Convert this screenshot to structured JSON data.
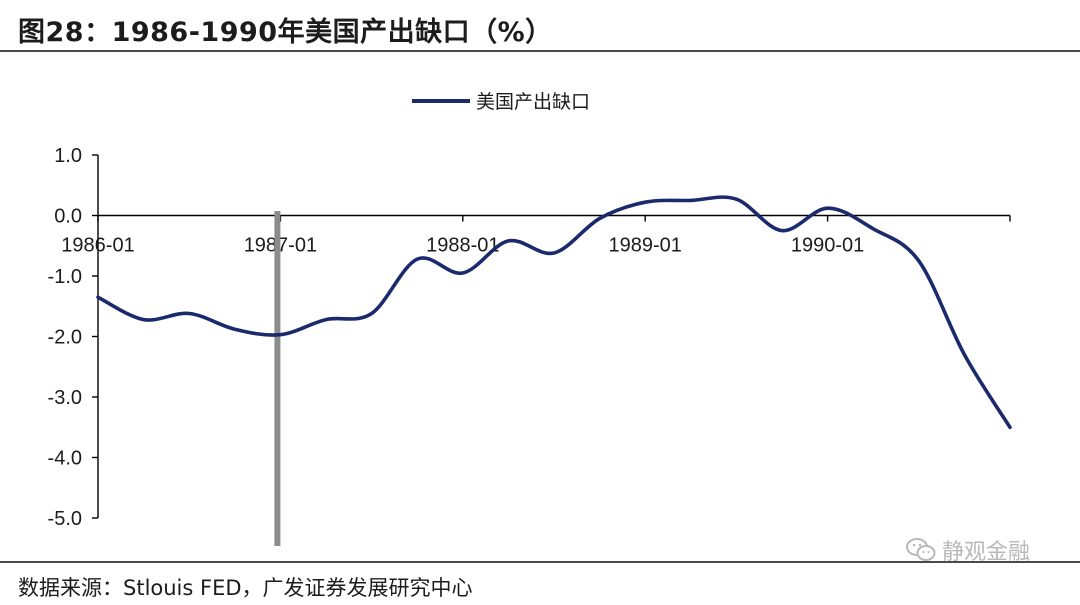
{
  "figure_title": "图28：1986-1990年美国产出缺口（%）",
  "source_note": "数据来源：Stlouis FED，广发证券发展研究中心",
  "watermark_text": "静观金融",
  "colors": {
    "series_line": "#1a2a6c",
    "vertical_marker": "#8c8c8c",
    "axis": "#000000",
    "text": "#1c1c1c",
    "watermark": "#b8b8b8"
  },
  "chart_data": {
    "type": "line",
    "title": "",
    "xlabel": "",
    "ylabel": "",
    "ylim": [
      -5.0,
      1.0
    ],
    "y_ticks": [
      "1.0",
      "0.0",
      "-1.0",
      "-2.0",
      "-3.0",
      "-4.0",
      "-5.0"
    ],
    "x_ticks": [
      "1986-01",
      "1987-01",
      "1988-01",
      "1989-01",
      "1990-01"
    ],
    "grid": false,
    "legend_position": "top-center",
    "vertical_marker_at": "1987-01",
    "series": [
      {
        "name": "美国产出缺口",
        "x": [
          "1986-01",
          "1986-04",
          "1986-07",
          "1986-10",
          "1987-01",
          "1987-04",
          "1987-07",
          "1987-10",
          "1988-01",
          "1988-04",
          "1988-07",
          "1988-10",
          "1989-01",
          "1989-04",
          "1989-07",
          "1989-10",
          "1990-01",
          "1990-04",
          "1990-07",
          "1990-10",
          "1991-01"
        ],
        "values": [
          -1.35,
          -1.72,
          -1.62,
          -1.88,
          -1.97,
          -1.72,
          -1.62,
          -0.72,
          -0.95,
          -0.42,
          -0.62,
          -0.05,
          0.22,
          0.25,
          0.27,
          -0.25,
          0.12,
          -0.22,
          -0.75,
          -2.3,
          -3.5
        ]
      }
    ]
  }
}
